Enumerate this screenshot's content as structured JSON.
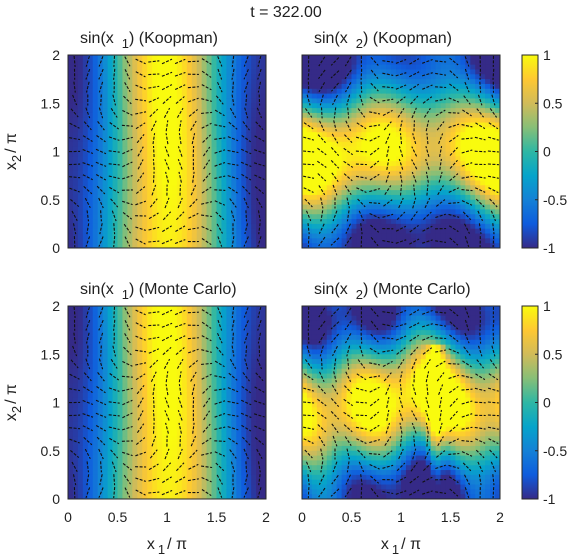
{
  "figure_title": "t = 322.00",
  "chart_data": [
    {
      "type": "heatmap",
      "title": "sin(x  1) (Koopman)",
      "title_parts": [
        "sin(x",
        "1",
        ") (Koopman)"
      ],
      "xlabel": "",
      "ylabel_parts": [
        "x",
        "2",
        "/ π"
      ],
      "xlim": [
        0,
        2
      ],
      "ylim": [
        0,
        2
      ],
      "yticks": [
        "0",
        "0.5",
        "1",
        "1.5",
        "2"
      ],
      "xticks": [],
      "clim": [
        -1,
        1
      ],
      "field": "x1",
      "overlay": "quiver"
    },
    {
      "type": "heatmap",
      "title": "sin(x  2) (Koopman)",
      "title_parts": [
        "sin(x",
        "2",
        ") (Koopman)"
      ],
      "xlabel": "",
      "xlim": [
        0,
        2
      ],
      "ylim": [
        0,
        2
      ],
      "yticks": [],
      "xticks": [],
      "clim": [
        -1,
        1
      ],
      "colorbar_ticks": [
        "1",
        "0.5",
        "0",
        "-0.5",
        "-1"
      ],
      "field": "x2",
      "overlay": "quiver"
    },
    {
      "type": "heatmap",
      "title": "sin(x  1) (Monte Carlo)",
      "title_parts": [
        "sin(x",
        "1",
        ") (Monte Carlo)"
      ],
      "xlabel_parts": [
        "x",
        "1",
        "/ π"
      ],
      "ylabel_parts": [
        "x",
        "2",
        "/ π"
      ],
      "xlim": [
        0,
        2
      ],
      "ylim": [
        0,
        2
      ],
      "yticks": [
        "0",
        "0.5",
        "1",
        "1.5",
        "2"
      ],
      "xticks": [
        "0",
        "0.5",
        "1",
        "1.5",
        "2"
      ],
      "clim": [
        -1,
        1
      ],
      "field": "x1",
      "overlay": "quiver"
    },
    {
      "type": "heatmap",
      "title": "sin(x  2) (Monte Carlo)",
      "title_parts": [
        "sin(x",
        "2",
        ") (Monte Carlo)"
      ],
      "xlabel_parts": [
        "x",
        "1",
        "/ π"
      ],
      "xlim": [
        0,
        2
      ],
      "ylim": [
        0,
        2
      ],
      "yticks": [],
      "xticks": [
        "0",
        "0.5",
        "1",
        "1.5",
        "2"
      ],
      "clim": [
        -1,
        1
      ],
      "colorbar_ticks": [
        "1",
        "0.5",
        "0",
        "-0.5",
        "-1"
      ],
      "field": "x2mc",
      "overlay": "quiver"
    }
  ],
  "colormap": "parula",
  "colors": [
    "#352a87",
    "#0f5cdd",
    "#1481d6",
    "#06a4ca",
    "#2eb7a4",
    "#87bf77",
    "#d1bb59",
    "#fec832",
    "#f9fb0e"
  ]
}
